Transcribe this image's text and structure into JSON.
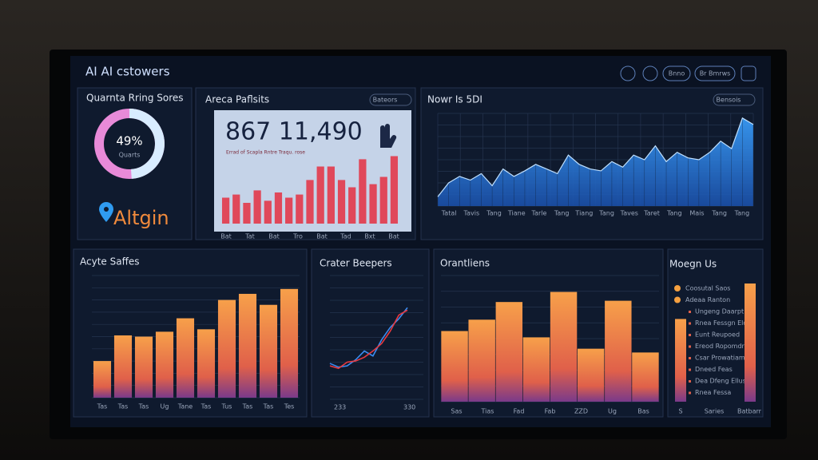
{
  "header": {
    "title": "AI AI cstowers",
    "buttons": [
      "Bnno",
      "Br Bmrws"
    ]
  },
  "donut_panel": {
    "title": "Quarnta Rring Sores",
    "value": 49,
    "value_label": "49%",
    "caption": "Quarts",
    "brand": "Altgin"
  },
  "revenue_panel": {
    "title": "Areca Paflsits",
    "dropdown": "Bateors",
    "headline": "867 11,490",
    "subtitle": "Errad of Scapla Rntre Traqu. rose",
    "ylim": [
      0,
      100
    ],
    "color": "#e0485a",
    "values": [
      25,
      28,
      20,
      32,
      22,
      30,
      25,
      28,
      42,
      55,
      55,
      42,
      35,
      62,
      38,
      45,
      65
    ],
    "x_labels": [
      "Bat",
      "Tat",
      "Bat",
      "Tro",
      "Bat",
      "Tad",
      "Bxt",
      "Bat"
    ]
  },
  "trend_panel": {
    "title": "Nowr Is 5DI",
    "dropdown": "Bensois",
    "ylim": [
      0,
      100
    ],
    "color": "#2f8fe8",
    "values": [
      10,
      25,
      32,
      28,
      35,
      22,
      40,
      32,
      38,
      45,
      40,
      35,
      55,
      45,
      40,
      38,
      48,
      42,
      55,
      50,
      65,
      48,
      58,
      52,
      50,
      58,
      70,
      62,
      95,
      88
    ],
    "x_labels": [
      "Tatal",
      "Tavis",
      "Tang",
      "Tiane",
      "Tarle",
      "Tang",
      "Tiang",
      "Tang",
      "Taves",
      "Taret",
      "Tang",
      "Mais",
      "Tang",
      "Tang"
    ]
  },
  "sales_panel": {
    "title": "Acyte Saffes",
    "ylim": [
      0,
      100
    ],
    "values": [
      30,
      51,
      50,
      54,
      65,
      56,
      80,
      85,
      76,
      89
    ],
    "x_labels": [
      "Tas",
      "Tas",
      "Tas",
      "Ug",
      "Tane",
      "Tas",
      "Tus",
      "Tas",
      "Tas",
      "Tes"
    ]
  },
  "crater_panel": {
    "title": "Crater Beepers",
    "ylim": [
      0,
      100
    ],
    "series": [
      {
        "color": "#3b8cf0",
        "values": [
          29,
          26,
          27,
          32,
          39,
          35,
          48,
          58,
          65,
          74
        ]
      },
      {
        "color": "#e8393f",
        "values": [
          27,
          25,
          30,
          31,
          34,
          39,
          45,
          55,
          68,
          72
        ]
      }
    ],
    "x_labels": [
      "233",
      "330"
    ]
  },
  "orantliens_panel": {
    "title": "Orantliens",
    "ylim": [
      0,
      100
    ],
    "values": [
      56,
      65,
      79,
      51,
      87,
      42,
      80,
      39
    ],
    "x_labels": [
      "Sas",
      "Tias",
      "Fad",
      "Fab",
      "ZZD",
      "Ug",
      "Bas"
    ]
  },
  "list_panel": {
    "title": "Moegn Us",
    "ylim": [
      0,
      100
    ],
    "items": [
      "Coosutal Saos",
      "Adeaa Ranton",
      "Ungeng Daarpt",
      "Rnea Fessgn Eld",
      "Eunt Reupoed",
      "Ereod Ropomdrg",
      "Csar Prowatiam",
      "Dneed Feas",
      "Dea Dfeng Elluse",
      "Rnea Fessa"
    ],
    "bars": [
      70,
      100
    ],
    "footer": [
      "S",
      "Saries",
      "Batbarr"
    ]
  }
}
